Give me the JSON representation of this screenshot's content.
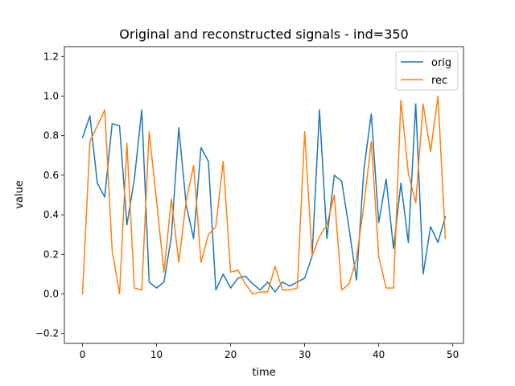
{
  "chart_data": {
    "type": "line",
    "title": "Original and reconstructed signals - ind=350",
    "xlabel": "time",
    "ylabel": "value",
    "xlim": [
      -2.45,
      51.45
    ],
    "ylim": [
      -0.25,
      1.25
    ],
    "xticks": [
      0,
      10,
      20,
      30,
      40,
      50
    ],
    "xtick_labels": [
      "0",
      "10",
      "20",
      "30",
      "40",
      "50"
    ],
    "yticks": [
      -0.2,
      0.0,
      0.2,
      0.4,
      0.6,
      0.8,
      1.0,
      1.2
    ],
    "ytick_labels": [
      "−0.2",
      "0.0",
      "0.2",
      "0.4",
      "0.6",
      "0.8",
      "1.0",
      "1.2"
    ],
    "grid": false,
    "legend_position": "top-right",
    "x": [
      0,
      1,
      2,
      3,
      4,
      5,
      6,
      7,
      8,
      9,
      10,
      11,
      12,
      13,
      14,
      15,
      16,
      17,
      18,
      19,
      20,
      21,
      22,
      23,
      24,
      25,
      26,
      27,
      28,
      29,
      30,
      31,
      32,
      33,
      34,
      35,
      36,
      37,
      38,
      39,
      40,
      41,
      42,
      43,
      44,
      45,
      46,
      47,
      48,
      49
    ],
    "series": [
      {
        "name": "orig",
        "color": "#1f77b4",
        "values": [
          0.79,
          0.9,
          0.56,
          0.49,
          0.86,
          0.85,
          0.35,
          0.58,
          0.93,
          0.06,
          0.03,
          0.06,
          0.29,
          0.84,
          0.45,
          0.28,
          0.74,
          0.67,
          0.02,
          0.1,
          0.03,
          0.08,
          0.09,
          0.05,
          0.02,
          0.06,
          0.01,
          0.06,
          0.04,
          0.06,
          0.08,
          0.19,
          0.93,
          0.28,
          0.6,
          0.57,
          0.33,
          0.07,
          0.63,
          0.91,
          0.36,
          0.58,
          0.23,
          0.56,
          0.26,
          0.96,
          0.1,
          0.34,
          0.26,
          0.39
        ]
      },
      {
        "name": "rec",
        "color": "#ff7f0e",
        "values": [
          0.0,
          0.77,
          0.85,
          0.93,
          0.22,
          0.0,
          0.76,
          0.03,
          0.02,
          0.82,
          0.47,
          0.11,
          0.48,
          0.16,
          0.47,
          0.65,
          0.16,
          0.3,
          0.34,
          0.67,
          0.11,
          0.12,
          0.05,
          0.0,
          0.01,
          0.01,
          0.14,
          0.02,
          0.02,
          0.03,
          0.82,
          0.19,
          0.29,
          0.35,
          0.5,
          0.02,
          0.05,
          0.18,
          0.45,
          0.77,
          0.19,
          0.03,
          0.03,
          0.98,
          0.61,
          0.46,
          0.96,
          0.72,
          1.0,
          0.28
        ]
      }
    ]
  }
}
